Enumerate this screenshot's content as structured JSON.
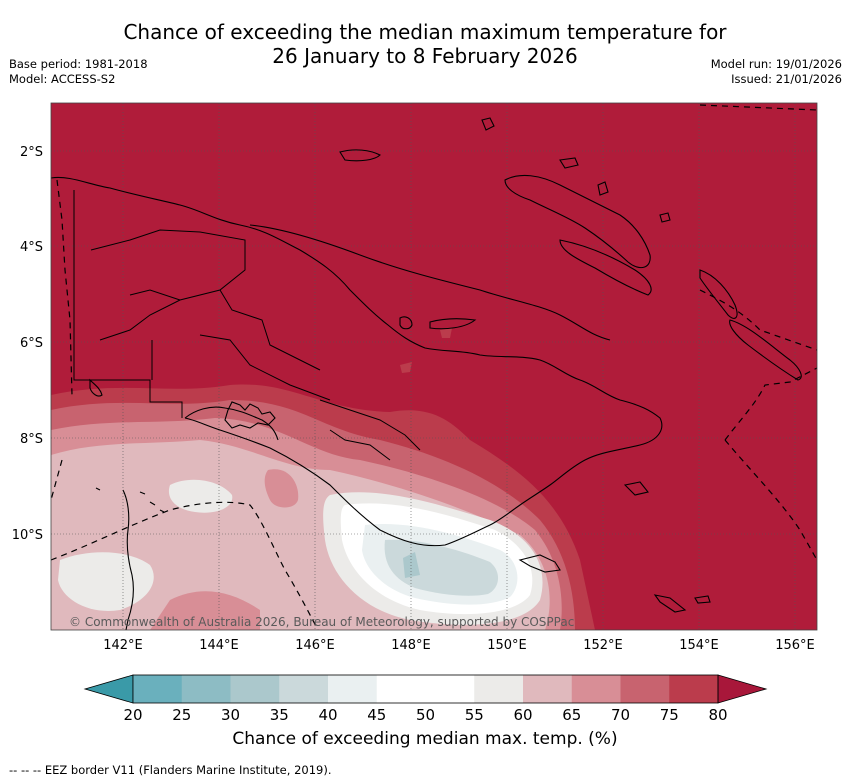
{
  "title": {
    "line1": "Chance of exceeding the median maximum temperature for",
    "line2": "26 January to 8 February 2026"
  },
  "meta_left": {
    "base_period": "Base period: 1981-2018",
    "model": "Model: ACCESS-S2"
  },
  "meta_right": {
    "model_run": "Model run: 19/01/2026",
    "issued": "Issued: 21/01/2026"
  },
  "map": {
    "lat_labels": [
      "2°S",
      "4°S",
      "6°S",
      "8°S",
      "10°S"
    ],
    "lon_labels": [
      "142°E",
      "144°E",
      "146°E",
      "148°E",
      "150°E",
      "152°E",
      "154°E",
      "156°E"
    ],
    "copyright": "© Commonwealth of Australia 2026, Bureau of Meteorology, supported by COSPPac"
  },
  "colorbar": {
    "ticks": [
      "20",
      "25",
      "30",
      "35",
      "40",
      "45",
      "50",
      "55",
      "60",
      "65",
      "70",
      "75",
      "80"
    ],
    "colors": [
      "#3a9aa8",
      "#6ab0bd",
      "#8dbcc4",
      "#abc8cc",
      "#cbd9db",
      "#eaf0f1",
      "#ffffff",
      "#ffffff",
      "#ecebe9",
      "#e0b9bd",
      "#d88e96",
      "#c8636f",
      "#bb3c4c",
      "#a8173a"
    ],
    "label": "Chance of exceeding median max. temp. (%)"
  },
  "footnote": "-- -- -- EEZ border V11 (Flanders Marine Institute, 2019)."
}
